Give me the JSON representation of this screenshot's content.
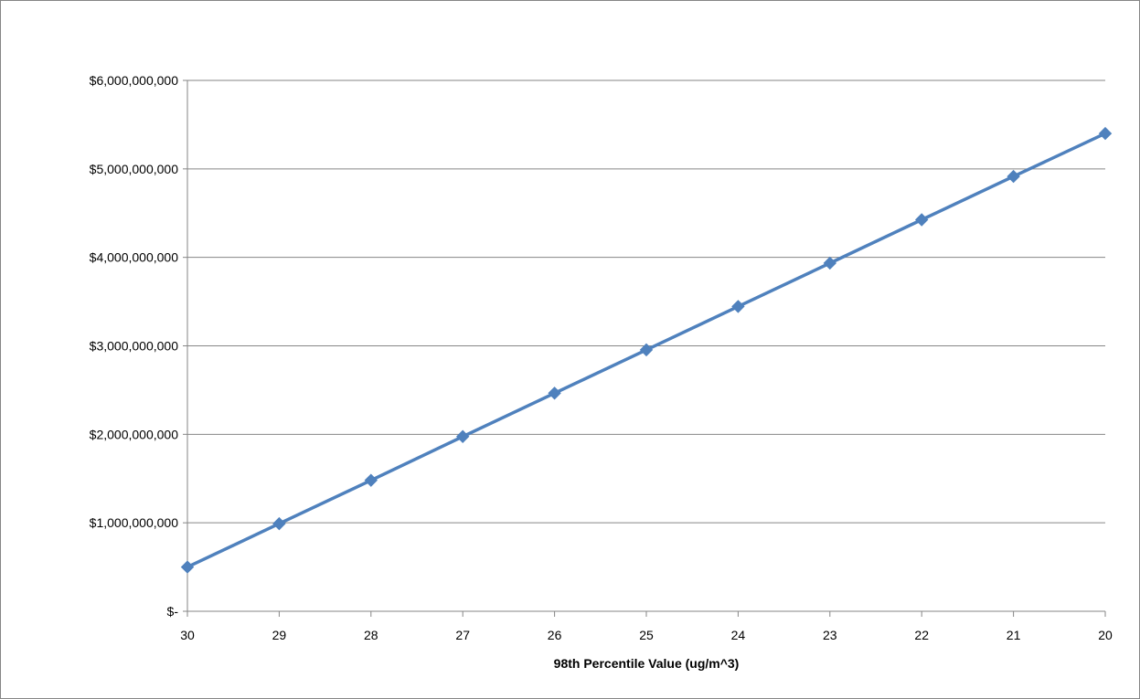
{
  "chart_data": {
    "type": "line",
    "title": "",
    "xlabel": "98th Percentile Value (ug/m^3)",
    "ylabel": "",
    "x": [
      30,
      29,
      28,
      27,
      26,
      25,
      24,
      23,
      22,
      21,
      20
    ],
    "series": [
      {
        "values": [
          500000000,
          990000000,
          1480000000,
          1975000000,
          2465000000,
          2955000000,
          3445000000,
          3935000000,
          4425000000,
          4915000000,
          5400000000
        ]
      }
    ],
    "ylim": [
      0,
      6000000000
    ],
    "yticks": [
      0,
      1000000000,
      2000000000,
      3000000000,
      4000000000,
      5000000000,
      6000000000
    ],
    "ytick_labels": [
      "$-",
      "$1,000,000,000",
      "$2,000,000,000",
      "$3,000,000,000",
      "$4,000,000,000",
      "$5,000,000,000",
      "$6,000,000,000"
    ],
    "xtick_labels": [
      "30",
      "29",
      "28",
      "27",
      "26",
      "25",
      "24",
      "23",
      "22",
      "21",
      "20"
    ],
    "xaxis_reversed": true,
    "grid": true,
    "legend": "none",
    "marker": "diamond",
    "colors": {
      "line": "#4f81bd",
      "marker": "#4f81bd",
      "grid": "#868686",
      "axis": "#868686"
    }
  }
}
